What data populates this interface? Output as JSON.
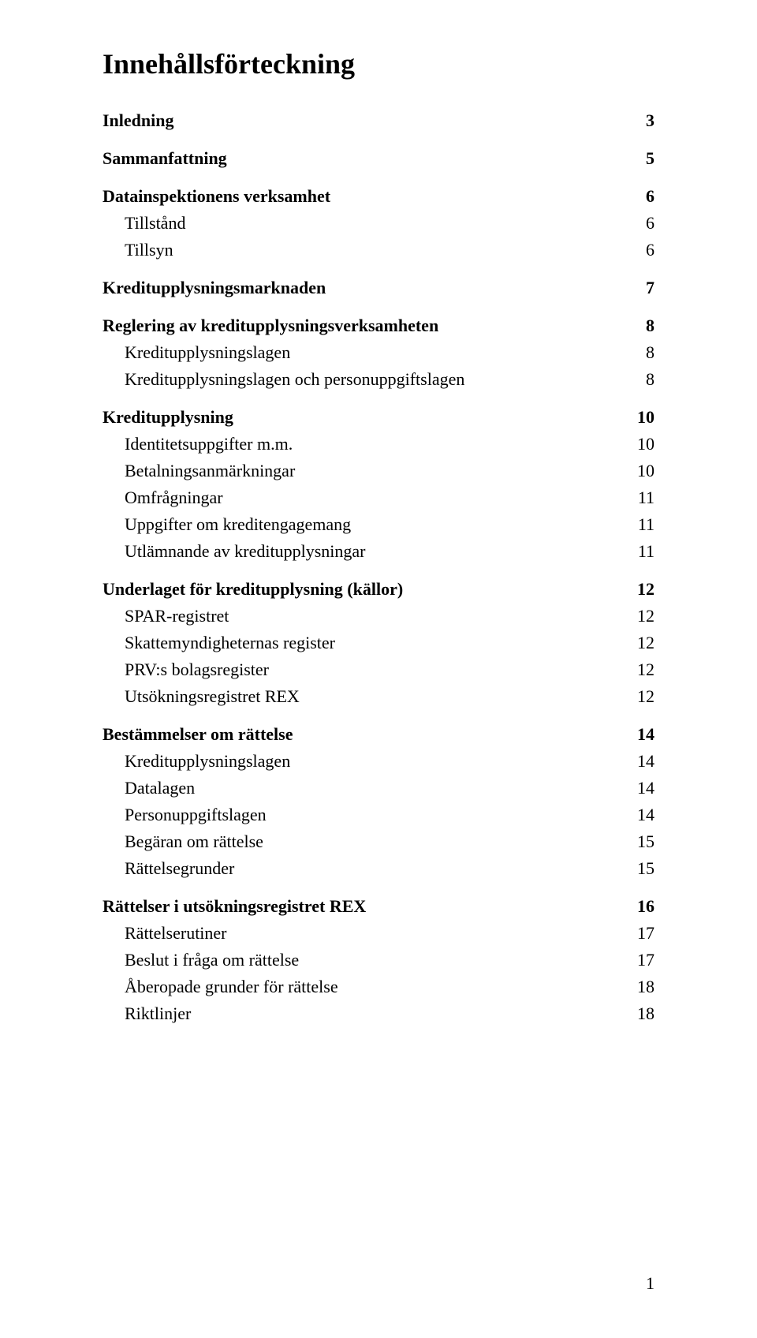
{
  "title": "Innehållsförteckning",
  "footer_page_number": "1",
  "entries": [
    {
      "label": "Inledning",
      "page": "3",
      "level": 1,
      "leader": true
    },
    {
      "label": "Sammanfattning",
      "page": "5",
      "level": 1,
      "leader": true
    },
    {
      "label": "Datainspektionens verksamhet",
      "page": "6",
      "level": 1,
      "leader": true
    },
    {
      "label": "Tillstånd",
      "page": "6",
      "level": 2,
      "leader": false
    },
    {
      "label": "Tillsyn",
      "page": "6",
      "level": 2,
      "leader": false
    },
    {
      "label": "Kreditupplysningsmarknaden",
      "page": "7",
      "level": 1,
      "leader": true
    },
    {
      "label": "Reglering av kreditupplysningsverksamheten",
      "page": "8",
      "level": 1,
      "leader": true
    },
    {
      "label": "Kreditupplysningslagen",
      "page": "8",
      "level": 2,
      "leader": false
    },
    {
      "label": "Kreditupplysningslagen och personuppgiftslagen",
      "page": "8",
      "level": 2,
      "leader": false
    },
    {
      "label": "Kreditupplysning",
      "page": "10",
      "level": 1,
      "leader": true
    },
    {
      "label": "Identitetsuppgifter m.m.",
      "page": "10",
      "level": 2,
      "leader": false
    },
    {
      "label": "Betalningsanmärkningar",
      "page": "10",
      "level": 2,
      "leader": false
    },
    {
      "label": "Omfrågningar",
      "page": "11",
      "level": 2,
      "leader": false
    },
    {
      "label": "Uppgifter om kreditengagemang",
      "page": "11",
      "level": 2,
      "leader": false
    },
    {
      "label": "Utlämnande av kreditupplysningar",
      "page": "11",
      "level": 2,
      "leader": false
    },
    {
      "label": "Underlaget för kreditupplysning (källor)",
      "page": "12",
      "level": 1,
      "leader": true
    },
    {
      "label": "SPAR-registret",
      "page": "12",
      "level": 2,
      "leader": false
    },
    {
      "label": "Skattemyndigheternas register",
      "page": "12",
      "level": 2,
      "leader": false
    },
    {
      "label": "PRV:s bolagsregister",
      "page": "12",
      "level": 2,
      "leader": false
    },
    {
      "label": "Utsökningsregistret REX",
      "page": "12",
      "level": 2,
      "leader": false
    },
    {
      "label": "Bestämmelser om rättelse",
      "page": "14",
      "level": 1,
      "leader": true
    },
    {
      "label": "Kreditupplysningslagen",
      "page": "14",
      "level": 2,
      "leader": false
    },
    {
      "label": "Datalagen",
      "page": "14",
      "level": 2,
      "leader": false
    },
    {
      "label": "Personuppgiftslagen",
      "page": "14",
      "level": 2,
      "leader": false
    },
    {
      "label": "Begäran om rättelse",
      "page": "15",
      "level": 2,
      "leader": false
    },
    {
      "label": "Rättelsegrunder",
      "page": "15",
      "level": 2,
      "leader": false
    },
    {
      "label": "Rättelser i utsökningsregistret REX",
      "page": "16",
      "level": 1,
      "leader": true
    },
    {
      "label": "Rättelserutiner",
      "page": "17",
      "level": 2,
      "leader": false
    },
    {
      "label": "Beslut i fråga om rättelse",
      "page": "17",
      "level": 2,
      "leader": false
    },
    {
      "label": "Åberopade grunder för rättelse",
      "page": "18",
      "level": 2,
      "leader": false
    },
    {
      "label": "Riktlinjer",
      "page": "18",
      "level": 2,
      "leader": false
    }
  ]
}
